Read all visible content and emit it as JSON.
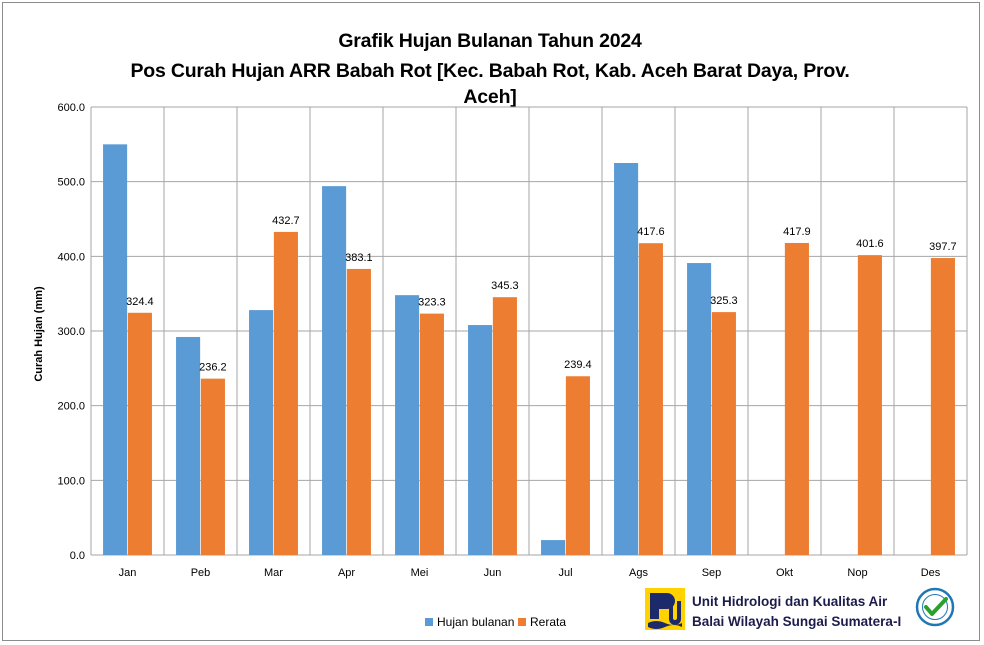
{
  "chart_data": {
    "type": "bar",
    "title_lines": [
      "Grafik Hujan Bulanan Tahun 2024",
      "Pos Curah Hujan ARR Babah Rot [Kec. Babah Rot, Kab. Aceh Barat Daya, Prov.",
      "Aceh]"
    ],
    "ylabel": "Curah Hujan (mm)",
    "xlabel": "",
    "ylim": [
      0,
      600
    ],
    "yticks": [
      "0.0",
      "100.0",
      "200.0",
      "300.0",
      "400.0",
      "500.0",
      "600.0"
    ],
    "grid": true,
    "legend_position": "bottom",
    "categories": [
      "Jan",
      "Peb",
      "Mar",
      "Apr",
      "Mei",
      "Jun",
      "Jul",
      "Ags",
      "Sep",
      "Okt",
      "Nop",
      "Des"
    ],
    "series": [
      {
        "name": "Hujan bulanan",
        "color": "#5b9bd5",
        "values": [
          550,
          292,
          328,
          494,
          348,
          308,
          20,
          525,
          391,
          null,
          null,
          null
        ],
        "labels": [
          "",
          "",
          "",
          "",
          "",
          "",
          "",
          "",
          "",
          "",
          "",
          ""
        ]
      },
      {
        "name": "Rerata",
        "color": "#ed7d31",
        "values": [
          324.4,
          236.2,
          432.7,
          383.1,
          323.3,
          345.3,
          239.4,
          417.6,
          325.3,
          417.9,
          401.6,
          397.7
        ],
        "labels": [
          "324.4",
          "236.2",
          "432.7",
          "383.1",
          "323.3",
          "345.3",
          "239.4",
          "417.6",
          "325.3",
          "417.9",
          "401.6",
          "397.7"
        ]
      }
    ]
  },
  "organization": {
    "line1": "Unit Hidrologi dan Kualitas Air",
    "line2": "Balai Wilayah Sungai Sumatera-I"
  },
  "iso_badge": {
    "text": "ISO 9001:2008 CERTIFIED"
  }
}
